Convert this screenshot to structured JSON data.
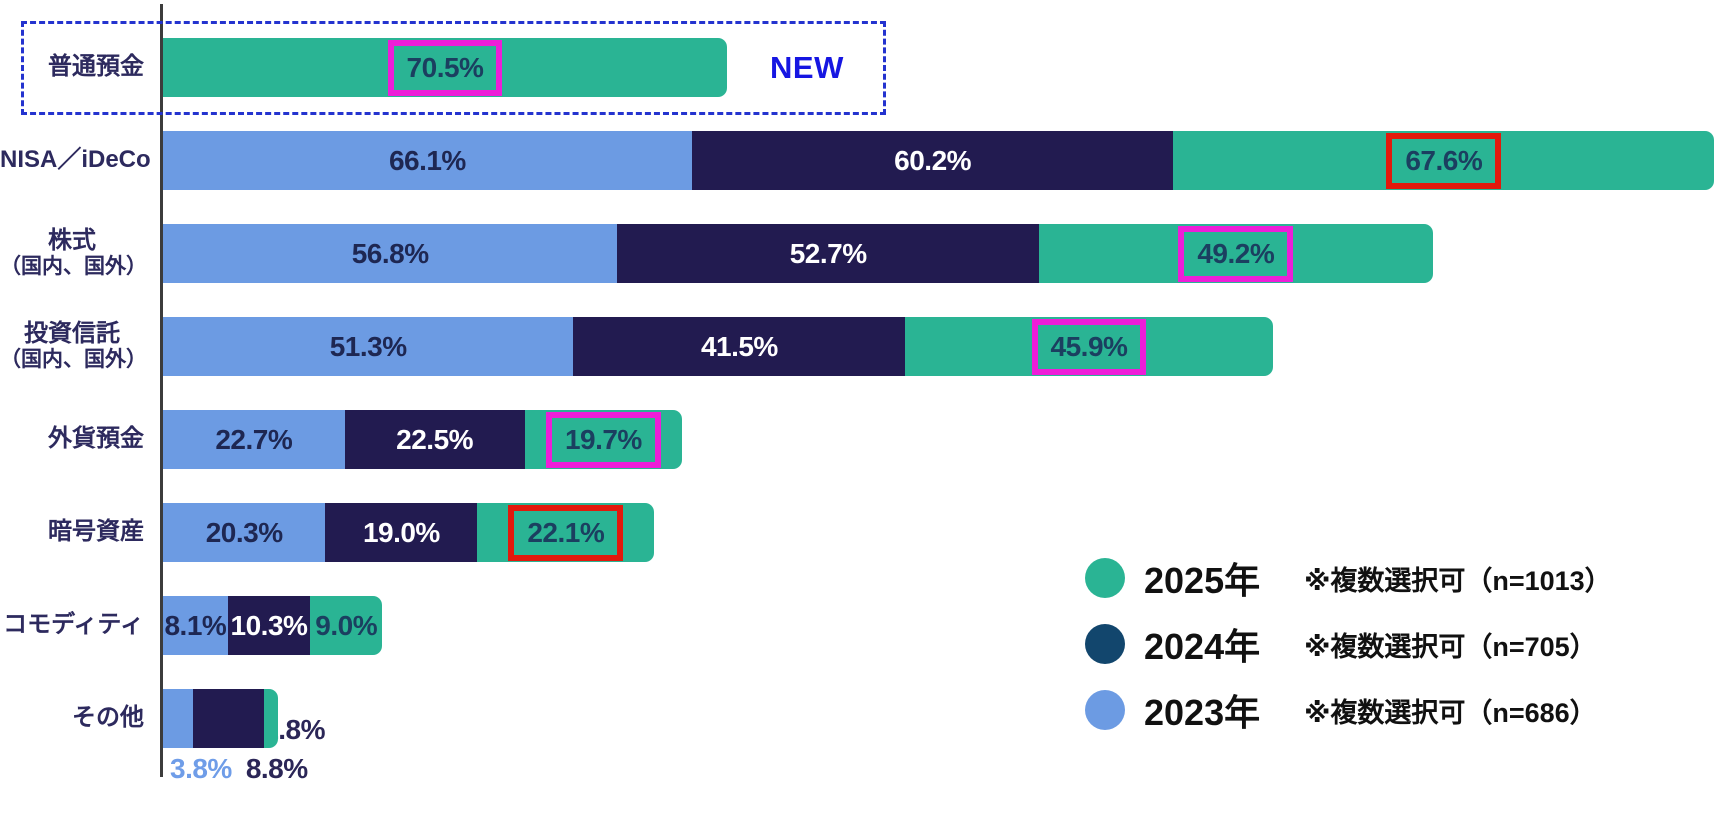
{
  "colors": {
    "bar_green": "#2ab494",
    "bar_navy": "#221b50",
    "bar_blue": "#6c9be3",
    "legend_navy": "#12466d",
    "text_on_blue": "#1e2752",
    "text_on_navy": "#ffffff",
    "text_on_green": "#1b3f60",
    "below_2023": "#6f9de8",
    "below_dark": "#2b2657",
    "new_blue": "#1616e2",
    "frame_blue": "#2433cf",
    "box_magenta": "#ed1ed8",
    "box_red": "#e2190c",
    "axis": "#3c3c3c"
  },
  "annotations": {
    "new_label": "NEW"
  },
  "legend": {
    "items": [
      {
        "year": "2025年",
        "note": "※複数選択可（n=1013）",
        "color_key": "bar_green"
      },
      {
        "year": "2024年",
        "note": "※複数選択可（n=705）",
        "color_key": "legend_navy"
      },
      {
        "year": "2023年",
        "note": "※複数選択可（n=686）",
        "color_key": "bar_blue"
      }
    ]
  },
  "chart_data": {
    "type": "bar",
    "orientation": "horizontal",
    "grouping": "stacked-by-year",
    "unit": "%",
    "series_names": [
      "2023年",
      "2024年",
      "2025年"
    ],
    "rows": [
      {
        "category": "普通預金",
        "framed": true,
        "note": "NEW",
        "segments": [
          {
            "series": "2025年",
            "value": 70.5,
            "label": "70.5%",
            "box": "magenta"
          }
        ]
      },
      {
        "category": "NISA／iDeCo",
        "segments": [
          {
            "series": "2023年",
            "value": 66.1,
            "label": "66.1%"
          },
          {
            "series": "2024年",
            "value": 60.2,
            "label": "60.2%"
          },
          {
            "series": "2025年",
            "value": 67.6,
            "label": "67.6%",
            "box": "red"
          }
        ]
      },
      {
        "category": "株式",
        "category_line2": "（国内、国外）",
        "segments": [
          {
            "series": "2023年",
            "value": 56.8,
            "label": "56.8%"
          },
          {
            "series": "2024年",
            "value": 52.7,
            "label": "52.7%"
          },
          {
            "series": "2025年",
            "value": 49.2,
            "label": "49.2%",
            "box": "magenta"
          }
        ]
      },
      {
        "category": "投資信託",
        "category_line2": "（国内、国外）",
        "segments": [
          {
            "series": "2023年",
            "value": 51.3,
            "label": "51.3%"
          },
          {
            "series": "2024年",
            "value": 41.5,
            "label": "41.5%"
          },
          {
            "series": "2025年",
            "value": 45.9,
            "label": "45.9%",
            "box": "magenta"
          }
        ]
      },
      {
        "category": "外貨預金",
        "segments": [
          {
            "series": "2023年",
            "value": 22.7,
            "label": "22.7%"
          },
          {
            "series": "2024年",
            "value": 22.5,
            "label": "22.5%"
          },
          {
            "series": "2025年",
            "value": 19.7,
            "label": "19.7%",
            "box": "magenta"
          }
        ]
      },
      {
        "category": "暗号資産",
        "segments": [
          {
            "series": "2023年",
            "value": 20.3,
            "label": "20.3%"
          },
          {
            "series": "2024年",
            "value": 19.0,
            "label": "19.0%"
          },
          {
            "series": "2025年",
            "value": 22.1,
            "label": "22.1%",
            "box": "red"
          }
        ]
      },
      {
        "category": "コモディティ",
        "segments": [
          {
            "series": "2023年",
            "value": 8.1,
            "label": "8.1%"
          },
          {
            "series": "2024年",
            "value": 10.3,
            "label": "10.3%"
          },
          {
            "series": "2025年",
            "value": 9.0,
            "label": "9.0%"
          }
        ]
      },
      {
        "category": "その他",
        "segments": [
          {
            "series": "2023年",
            "value": 3.8,
            "label": "3.8%",
            "label_position": "below"
          },
          {
            "series": "2024年",
            "value": 8.8,
            "label": "8.8%",
            "label_position": "below"
          },
          {
            "series": "2025年",
            "value": 1.8,
            "label": "1.8%",
            "label_position": "right"
          }
        ]
      }
    ]
  }
}
